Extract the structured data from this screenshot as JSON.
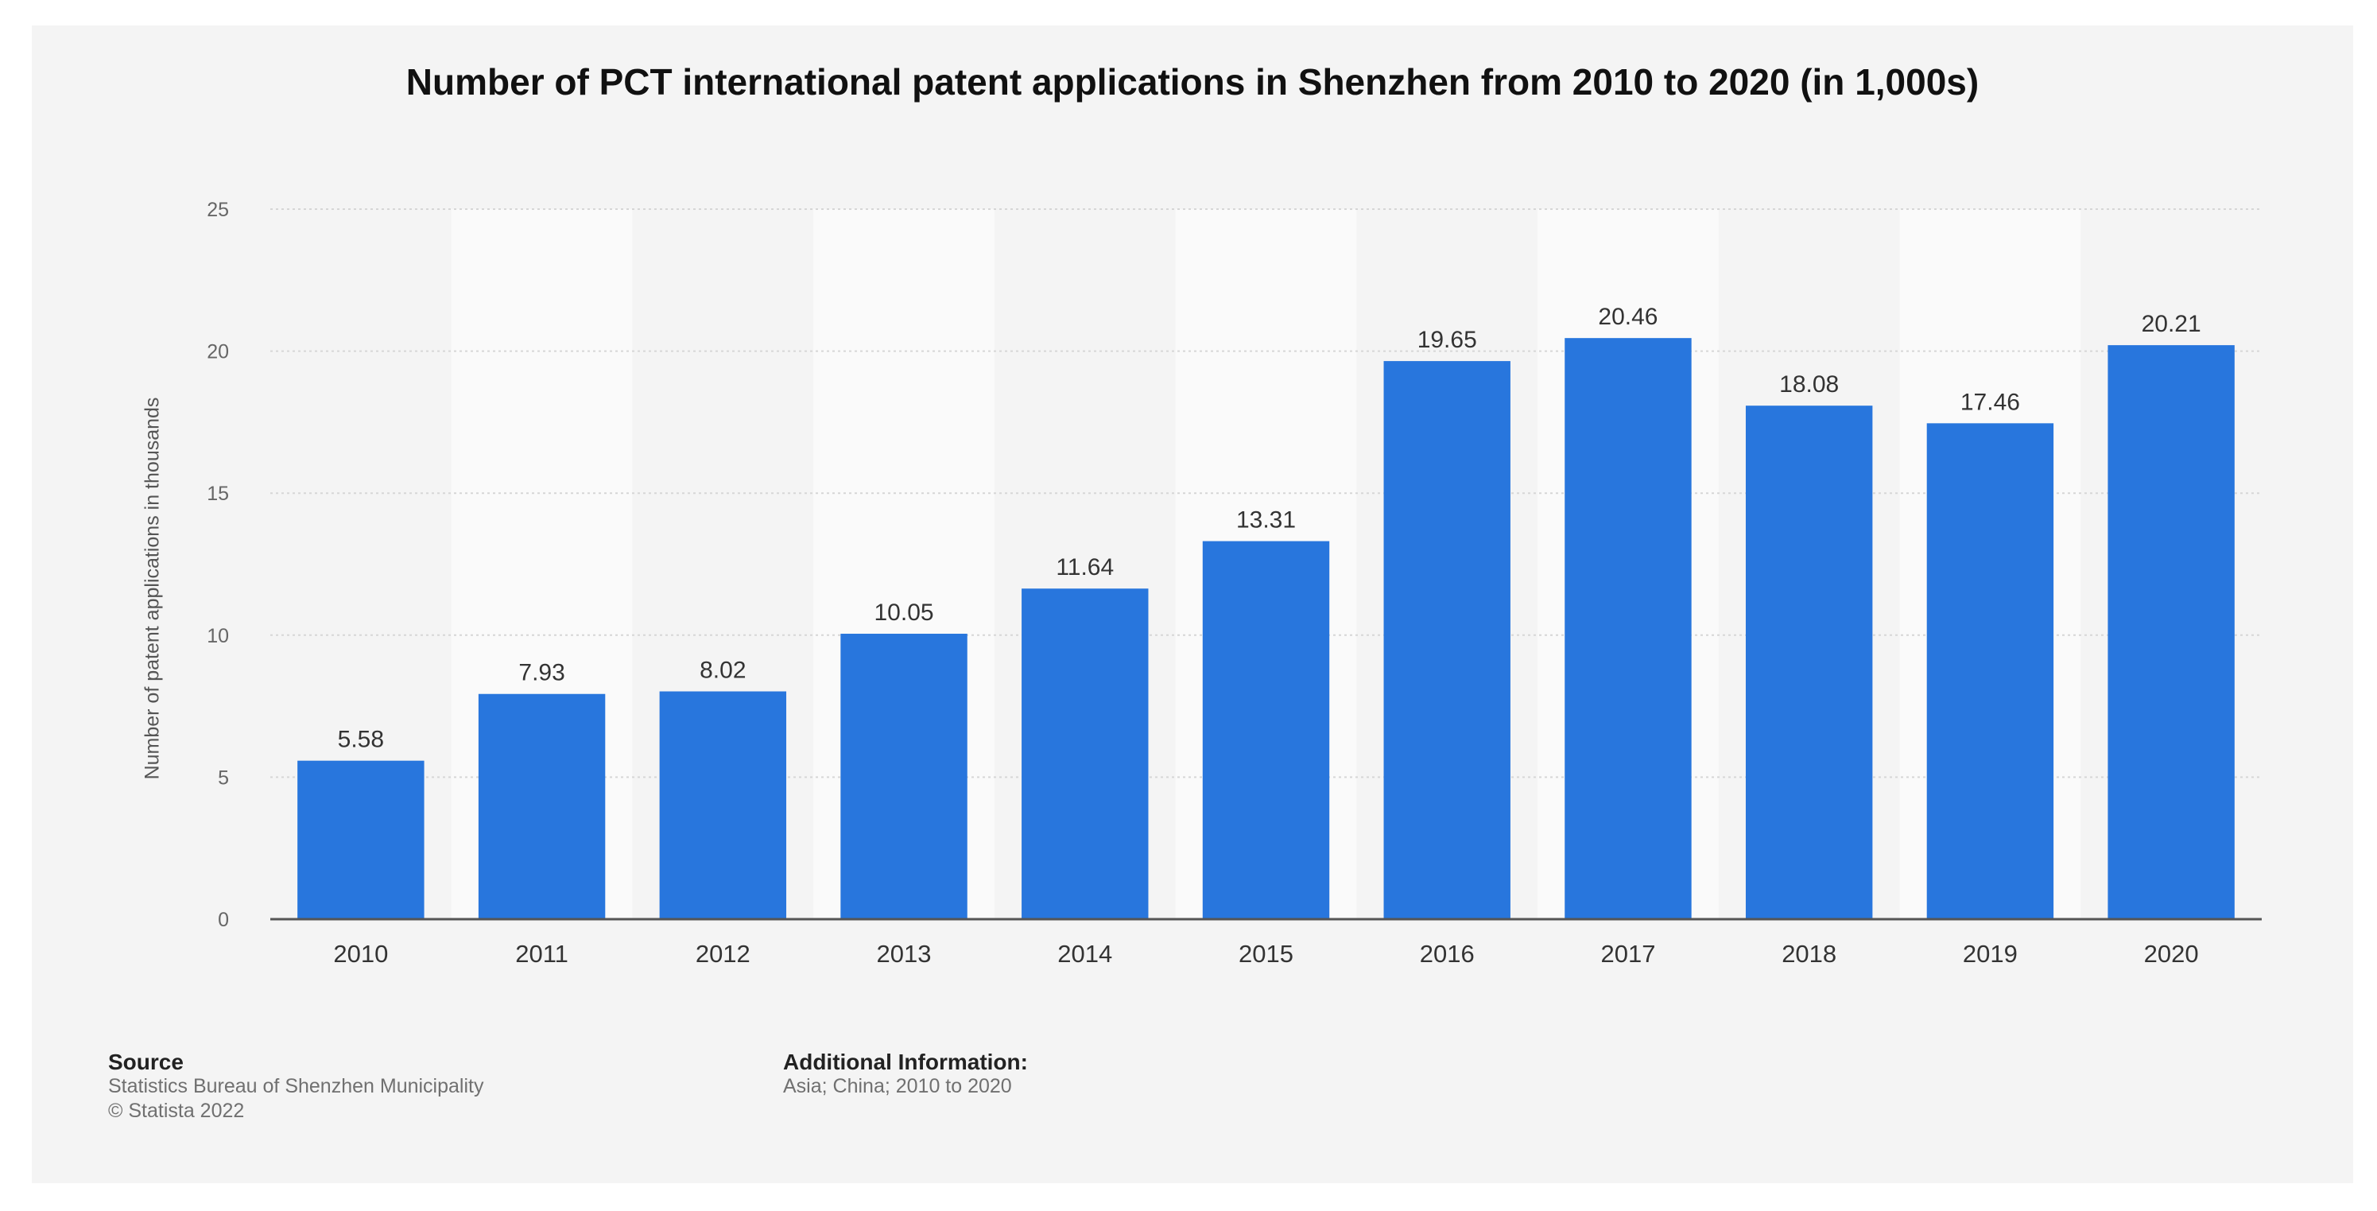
{
  "chart_data": {
    "type": "bar",
    "title": "Number of PCT international patent applications in Shenzhen from 2010 to 2020 (in 1,000s)",
    "ylabel": "Number of patent applications in thousands",
    "xlabel": "",
    "categories": [
      "2010",
      "2011",
      "2012",
      "2013",
      "2014",
      "2015",
      "2016",
      "2017",
      "2018",
      "2019",
      "2020"
    ],
    "values": [
      5.58,
      7.93,
      8.02,
      10.05,
      11.64,
      13.31,
      19.65,
      20.46,
      18.08,
      17.46,
      20.21
    ],
    "value_labels": [
      "5.58",
      "7.93",
      "8.02",
      "10.05",
      "11.64",
      "13.31",
      "19.65",
      "20.46",
      "18.08",
      "17.46",
      "20.21"
    ],
    "ylim": [
      0,
      25
    ],
    "yticks": [
      0,
      5,
      10,
      15,
      20,
      25
    ],
    "grid": true,
    "legend": "none",
    "bar_color": "#2876dd"
  },
  "footer": {
    "source_heading": "Source",
    "source_line": "Statistics Bureau of Shenzhen Municipality",
    "copyright": "© Statista 2022",
    "info_heading": "Additional Information:",
    "info_line": "Asia; China; 2010 to 2020"
  }
}
